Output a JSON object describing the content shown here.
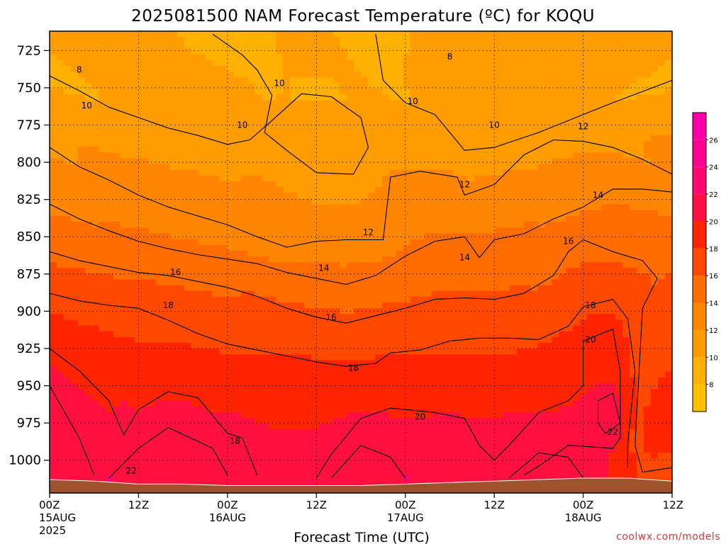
{
  "page": {
    "title": "2025081500 NAM Forecast Temperature (ºC) for KOQU",
    "xlabel": "Forecast Time (UTC)",
    "credit": "coolwx.com/models"
  },
  "chart_data": {
    "type": "heatmap",
    "title": "2025081500 NAM Forecast Temperature (ºC) for KOQU",
    "xlabel": "Forecast Time (UTC)",
    "ylabel": "",
    "x_range_hours": [
      0,
      84
    ],
    "y_range_hpa": [
      712,
      1022
    ],
    "y_ticks": [
      725,
      750,
      775,
      800,
      825,
      850,
      875,
      900,
      925,
      950,
      975,
      1000
    ],
    "x_ticks": [
      {
        "hour": 0,
        "label": "00Z",
        "date": "15AUG",
        "year": "2025"
      },
      {
        "hour": 12,
        "label": "12Z",
        "date": "",
        "year": ""
      },
      {
        "hour": 24,
        "label": "00Z",
        "date": "16AUG",
        "year": ""
      },
      {
        "hour": 36,
        "label": "12Z",
        "date": "",
        "year": ""
      },
      {
        "hour": 48,
        "label": "00Z",
        "date": "17AUG",
        "year": ""
      },
      {
        "hour": 60,
        "label": "12Z",
        "date": "",
        "year": ""
      },
      {
        "hour": 72,
        "label": "00Z",
        "date": "18AUG",
        "year": ""
      },
      {
        "hour": 84,
        "label": "12Z",
        "date": "",
        "year": ""
      }
    ],
    "grid": true,
    "colorbar": {
      "placement": "right",
      "min": 6,
      "max": 28,
      "tick_values": [
        8,
        10,
        12,
        14,
        16,
        18,
        20,
        22,
        24,
        26
      ],
      "levels": [
        {
          "min": 6,
          "max": 8,
          "color": "#ffc000"
        },
        {
          "min": 8,
          "max": 10,
          "color": "#ffb000"
        },
        {
          "min": 10,
          "max": 12,
          "color": "#ff9c00"
        },
        {
          "min": 12,
          "max": 14,
          "color": "#ff8600"
        },
        {
          "min": 14,
          "max": 16,
          "color": "#ff6c00"
        },
        {
          "min": 16,
          "max": 18,
          "color": "#ff4800"
        },
        {
          "min": 18,
          "max": 20,
          "color": "#ff2400"
        },
        {
          "min": 20,
          "max": 22,
          "color": "#ff1040"
        },
        {
          "min": 22,
          "max": 24,
          "color": "#ff0870"
        },
        {
          "min": 24,
          "max": 26,
          "color": "#ff0090"
        },
        {
          "min": 26,
          "max": 28,
          "color": "#ff00a8"
        }
      ]
    },
    "ground_color": "#a0522d",
    "surface_pressure_hpa": [
      {
        "hour": 0,
        "p": 1013
      },
      {
        "hour": 6,
        "p": 1014
      },
      {
        "hour": 12,
        "p": 1016
      },
      {
        "hour": 18,
        "p": 1016
      },
      {
        "hour": 24,
        "p": 1017
      },
      {
        "hour": 30,
        "p": 1017
      },
      {
        "hour": 36,
        "p": 1017
      },
      {
        "hour": 42,
        "p": 1017
      },
      {
        "hour": 48,
        "p": 1016
      },
      {
        "hour": 54,
        "p": 1015
      },
      {
        "hour": 60,
        "p": 1014
      },
      {
        "hour": 66,
        "p": 1013
      },
      {
        "hour": 72,
        "p": 1012
      },
      {
        "hour": 78,
        "p": 1012
      },
      {
        "hour": 84,
        "p": 1014
      }
    ],
    "isotherms": [
      {
        "temp": 10,
        "points": [
          [
            0,
            742
          ],
          [
            4,
            752
          ],
          [
            8,
            763
          ],
          [
            12,
            770
          ],
          [
            16,
            777
          ],
          [
            20,
            782
          ],
          [
            24,
            788
          ],
          [
            27,
            785
          ],
          [
            30,
            772
          ],
          [
            34,
            754
          ],
          [
            38,
            756
          ],
          [
            42,
            770
          ],
          [
            43,
            790
          ],
          [
            41,
            808
          ],
          [
            36,
            807
          ],
          [
            32,
            792
          ],
          [
            29,
            780
          ],
          [
            30,
            755
          ],
          [
            28,
            738
          ],
          [
            26,
            728
          ],
          [
            22,
            714
          ]
        ]
      },
      {
        "temp": 10,
        "points": [
          [
            44,
            714
          ],
          [
            45,
            745
          ],
          [
            48,
            760
          ],
          [
            52,
            768
          ],
          [
            56,
            792
          ],
          [
            60,
            790
          ],
          [
            66,
            780
          ],
          [
            72,
            768
          ],
          [
            76,
            760
          ],
          [
            84,
            745
          ]
        ]
      },
      {
        "temp": 12,
        "points": [
          [
            0,
            790
          ],
          [
            4,
            803
          ],
          [
            8,
            812
          ],
          [
            12,
            822
          ],
          [
            16,
            830
          ],
          [
            20,
            836
          ],
          [
            24,
            842
          ],
          [
            28,
            850
          ],
          [
            32,
            857
          ],
          [
            36,
            853
          ],
          [
            40,
            852
          ],
          [
            45,
            852
          ],
          [
            46,
            810
          ],
          [
            50,
            806
          ],
          [
            55,
            810
          ],
          [
            56,
            822
          ],
          [
            60,
            815
          ],
          [
            64,
            795
          ],
          [
            68,
            785
          ],
          [
            72,
            786
          ],
          [
            76,
            790
          ],
          [
            80,
            798
          ],
          [
            84,
            808
          ]
        ]
      },
      {
        "temp": 14,
        "points": [
          [
            0,
            828
          ],
          [
            4,
            838
          ],
          [
            8,
            846
          ],
          [
            12,
            853
          ],
          [
            16,
            858
          ],
          [
            20,
            862
          ],
          [
            24,
            865
          ],
          [
            28,
            868
          ],
          [
            32,
            874
          ],
          [
            36,
            878
          ],
          [
            40,
            882
          ],
          [
            44,
            876
          ],
          [
            48,
            863
          ],
          [
            52,
            853
          ],
          [
            56,
            850
          ],
          [
            58,
            864
          ],
          [
            60,
            852
          ],
          [
            64,
            848
          ],
          [
            68,
            838
          ],
          [
            72,
            830
          ],
          [
            76,
            818
          ],
          [
            80,
            818
          ],
          [
            84,
            820
          ]
        ]
      },
      {
        "temp": 16,
        "points": [
          [
            0,
            860
          ],
          [
            4,
            866
          ],
          [
            8,
            870
          ],
          [
            12,
            874
          ],
          [
            16,
            876
          ],
          [
            20,
            880
          ],
          [
            24,
            884
          ],
          [
            28,
            890
          ],
          [
            32,
            898
          ],
          [
            36,
            904
          ],
          [
            40,
            908
          ],
          [
            44,
            903
          ],
          [
            48,
            898
          ],
          [
            52,
            892
          ],
          [
            56,
            891
          ],
          [
            60,
            892
          ],
          [
            64,
            888
          ],
          [
            68,
            876
          ],
          [
            70,
            860
          ],
          [
            72,
            852
          ],
          [
            76,
            860
          ],
          [
            80,
            866
          ],
          [
            82,
            878
          ],
          [
            80,
            898
          ],
          [
            79,
            990
          ],
          [
            80,
            1008
          ],
          [
            84,
            1005
          ]
        ]
      },
      {
        "temp": 18,
        "points": [
          [
            0,
            888
          ],
          [
            4,
            893
          ],
          [
            8,
            896
          ],
          [
            12,
            898
          ],
          [
            16,
            906
          ],
          [
            20,
            915
          ],
          [
            24,
            922
          ],
          [
            28,
            926
          ],
          [
            32,
            930
          ],
          [
            36,
            934
          ],
          [
            40,
            937
          ],
          [
            44,
            935
          ],
          [
            46,
            928
          ],
          [
            50,
            926
          ],
          [
            54,
            920
          ],
          [
            58,
            918
          ],
          [
            62,
            918
          ],
          [
            66,
            919
          ],
          [
            70,
            910
          ],
          [
            72,
            897
          ],
          [
            76,
            892
          ],
          [
            78,
            905
          ],
          [
            79,
            940
          ],
          [
            78,
            990
          ],
          [
            78,
            1005
          ]
        ]
      },
      {
        "temp": 20,
        "points": [
          [
            0,
            925
          ],
          [
            4,
            940
          ],
          [
            8,
            960
          ],
          [
            10,
            983
          ],
          [
            12,
            966
          ],
          [
            16,
            954
          ],
          [
            20,
            958
          ],
          [
            24,
            982
          ],
          [
            26,
            985
          ],
          [
            28,
            1010
          ]
        ]
      },
      {
        "temp": 20,
        "points": [
          [
            36,
            1012
          ],
          [
            38,
            996
          ],
          [
            42,
            972
          ],
          [
            46,
            965
          ],
          [
            52,
            968
          ],
          [
            56,
            972
          ],
          [
            58,
            990
          ],
          [
            60,
            1000
          ],
          [
            62,
            990
          ],
          [
            66,
            968
          ],
          [
            70,
            960
          ],
          [
            72,
            950
          ],
          [
            72,
            920
          ],
          [
            76,
            912
          ],
          [
            77,
            940
          ],
          [
            77,
            985
          ],
          [
            76,
            992
          ],
          [
            70,
            990
          ],
          [
            66,
            1004
          ],
          [
            64,
            1010
          ]
        ]
      },
      {
        "temp": 22,
        "points": [
          [
            0,
            950
          ],
          [
            4,
            985
          ],
          [
            6,
            1010
          ]
        ]
      },
      {
        "temp": 22,
        "points": [
          [
            8,
            1012
          ],
          [
            12,
            992
          ],
          [
            16,
            978
          ],
          [
            22,
            992
          ],
          [
            24,
            1010
          ]
        ]
      },
      {
        "temp": 22,
        "points": [
          [
            38,
            1012
          ],
          [
            42,
            990
          ],
          [
            46,
            998
          ],
          [
            48,
            1012
          ]
        ]
      },
      {
        "temp": 22,
        "points": [
          [
            62,
            1012
          ],
          [
            66,
            995
          ],
          [
            70,
            998
          ],
          [
            72,
            1012
          ]
        ]
      },
      {
        "temp": 22,
        "points": [
          [
            74,
            960
          ],
          [
            76,
            955
          ],
          [
            77,
            975
          ],
          [
            75,
            982
          ],
          [
            74,
            975
          ],
          [
            74,
            960
          ]
        ]
      }
    ],
    "contour_labels": [
      {
        "text": "8",
        "hour": 4,
        "p": 738
      },
      {
        "text": "8",
        "hour": 54,
        "p": 729
      },
      {
        "text": "10",
        "hour": 5,
        "p": 762
      },
      {
        "text": "10",
        "hour": 31,
        "p": 747
      },
      {
        "text": "10",
        "hour": 26,
        "p": 775
      },
      {
        "text": "10",
        "hour": 49,
        "p": 759
      },
      {
        "text": "10",
        "hour": 60,
        "p": 775
      },
      {
        "text": "12",
        "hour": 72,
        "p": 776
      },
      {
        "text": "12",
        "hour": 56,
        "p": 815
      },
      {
        "text": "12",
        "hour": 43,
        "p": 847
      },
      {
        "text": "14",
        "hour": 37,
        "p": 871
      },
      {
        "text": "14",
        "hour": 56,
        "p": 864
      },
      {
        "text": "14",
        "hour": 74,
        "p": 822
      },
      {
        "text": "16",
        "hour": 17,
        "p": 874
      },
      {
        "text": "16",
        "hour": 38,
        "p": 904
      },
      {
        "text": "16",
        "hour": 70,
        "p": 853
      },
      {
        "text": "18",
        "hour": 16,
        "p": 896
      },
      {
        "text": "18",
        "hour": 41,
        "p": 938
      },
      {
        "text": "18",
        "hour": 25,
        "p": 987
      },
      {
        "text": "18",
        "hour": 73,
        "p": 896
      },
      {
        "text": "20",
        "hour": 50,
        "p": 971
      },
      {
        "text": "20",
        "hour": 73,
        "p": 919
      },
      {
        "text": "22",
        "hour": 11,
        "p": 1007
      },
      {
        "text": "22",
        "hour": 76,
        "p": 981
      }
    ]
  }
}
